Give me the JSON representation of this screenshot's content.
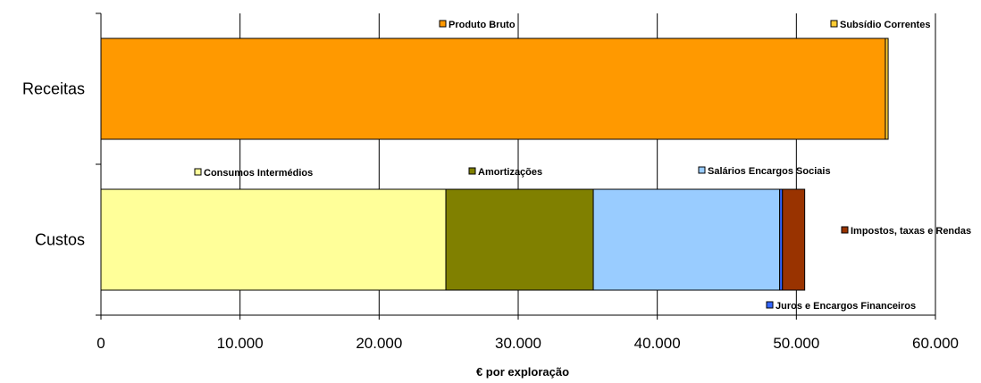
{
  "chart_data": {
    "type": "bar",
    "orientation": "horizontal",
    "stacked": true,
    "categories": [
      "Receitas",
      "Custos"
    ],
    "xlabel": "€ por exploração",
    "xlim": [
      0,
      60000
    ],
    "xticks": [
      0,
      10000,
      20000,
      30000,
      40000,
      50000,
      60000
    ],
    "xtick_labels": [
      "0",
      "10.000",
      "20.000",
      "30.000",
      "40.000",
      "50.000",
      "60.000"
    ],
    "grid": "vertical",
    "series": [
      {
        "name": "Produto Bruto",
        "color": "#ff9900",
        "values": [
          56400,
          0
        ]
      },
      {
        "name": "Subsídio Correntes",
        "color": "#ffcc33",
        "values": [
          200,
          0
        ]
      },
      {
        "name": "Consumos Intermédios",
        "color": "#ffff99",
        "values": [
          0,
          24800
        ]
      },
      {
        "name": "Amortizações",
        "color": "#808000",
        "values": [
          0,
          10600
        ]
      },
      {
        "name": "Salários Encargos Sociais",
        "color": "#99ccff",
        "values": [
          0,
          13400
        ]
      },
      {
        "name": "Juros e Encargos Financeiros",
        "color": "#3366ff",
        "values": [
          0,
          200
        ]
      },
      {
        "name": "Impostos, taxas e Rendas",
        "color": "#993300",
        "values": [
          0,
          1600
        ]
      }
    ]
  }
}
